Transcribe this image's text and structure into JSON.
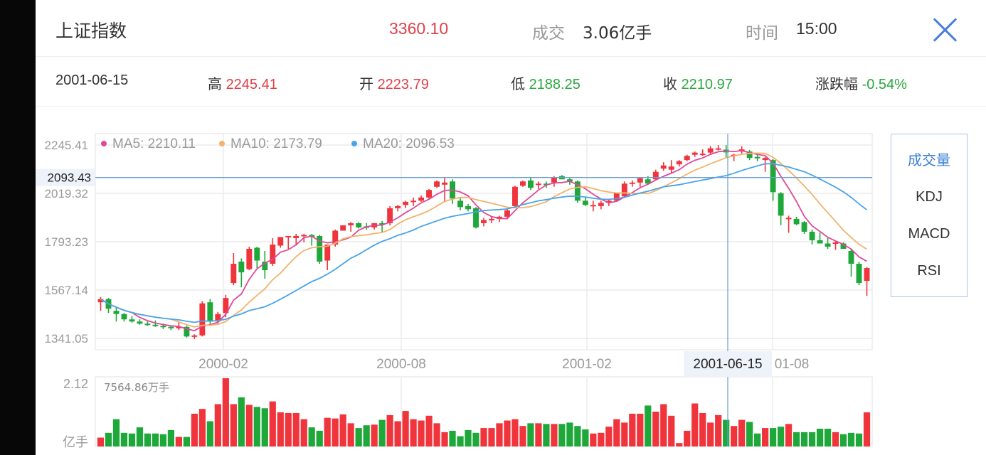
{
  "header": {
    "title": "上证指数",
    "price": "3360.10",
    "volume_label": "成交",
    "volume_value": "3.06亿手",
    "time_label": "时间",
    "time_value": "15:00",
    "close_icon": "close-icon"
  },
  "detail": {
    "date": "2001-06-15",
    "high_label": "高",
    "high_value": "2245.41",
    "open_label": "开",
    "open_value": "2223.79",
    "low_label": "低",
    "low_value": "2188.25",
    "close_label": "收",
    "close_value": "2210.97",
    "change_label": "涨跌幅",
    "change_value": "-0.54%"
  },
  "legend": {
    "ma5": "MA5: 2210.11",
    "ma10": "MA10: 2173.79",
    "ma20": "MA20: 2096.53"
  },
  "colors": {
    "up": "#f0343c",
    "down": "#1fa83a",
    "ma5": "#e0489a",
    "ma10": "#f2b36a",
    "ma20": "#48a4ea",
    "crosshair": "#6a9fd4",
    "accent": "#3b7fd6"
  },
  "indicators": [
    {
      "label": "成交量",
      "active": true
    },
    {
      "label": "KDJ",
      "active": false
    },
    {
      "label": "MACD",
      "active": false
    },
    {
      "label": "RSI",
      "active": false
    }
  ],
  "chart_data": {
    "type": "candlestick",
    "title": "上证指数",
    "y_ticks": [
      "2245.41",
      "2019.32",
      "1793.23",
      "1567.14",
      "1341.05"
    ],
    "y_range": [
      1341.05,
      2245.41
    ],
    "crosshair_price": "2093.43",
    "crosshair_date": "2001-06-15",
    "x_ticks": [
      "2000-02",
      "2000-08",
      "2001-02",
      "2001-08"
    ],
    "x_ticks_display": [
      "2000-02",
      "2000-08",
      "2001-02",
      "01-08"
    ],
    "volume_max_label": "2.12",
    "volume_unit": "亿手",
    "volume_value_label": "7564.86万手",
    "candles": [
      [
        1510,
        1535,
        1470,
        1525
      ],
      [
        1525,
        1530,
        1460,
        1480
      ],
      [
        1470,
        1490,
        1420,
        1455
      ],
      [
        1455,
        1460,
        1420,
        1430
      ],
      [
        1430,
        1445,
        1415,
        1420
      ],
      [
        1420,
        1430,
        1405,
        1410
      ],
      [
        1410,
        1420,
        1400,
        1405
      ],
      [
        1405,
        1425,
        1395,
        1400
      ],
      [
        1400,
        1410,
        1385,
        1395
      ],
      [
        1395,
        1400,
        1380,
        1390
      ],
      [
        1390,
        1420,
        1380,
        1395
      ],
      [
        1395,
        1400,
        1345,
        1350
      ],
      [
        1350,
        1360,
        1338,
        1355
      ],
      [
        1355,
        1515,
        1350,
        1505
      ],
      [
        1510,
        1525,
        1400,
        1420
      ],
      [
        1420,
        1465,
        1410,
        1455
      ],
      [
        1460,
        1545,
        1440,
        1530
      ],
      [
        1600,
        1740,
        1590,
        1690
      ],
      [
        1700,
        1715,
        1580,
        1650
      ],
      [
        1665,
        1770,
        1660,
        1760
      ],
      [
        1765,
        1770,
        1670,
        1705
      ],
      [
        1700,
        1750,
        1620,
        1660
      ],
      [
        1690,
        1810,
        1680,
        1780
      ],
      [
        1775,
        1815,
        1765,
        1815
      ],
      [
        1815,
        1820,
        1760,
        1820
      ],
      [
        1810,
        1830,
        1775,
        1820
      ],
      [
        1825,
        1830,
        1790,
        1825
      ],
      [
        1825,
        1830,
        1775,
        1815
      ],
      [
        1820,
        1825,
        1690,
        1700
      ],
      [
        1705,
        1780,
        1660,
        1780
      ],
      [
        1780,
        1850,
        1770,
        1845
      ],
      [
        1845,
        1870,
        1845,
        1870
      ],
      [
        1870,
        1885,
        1840,
        1880
      ],
      [
        1880,
        1885,
        1855,
        1860
      ],
      [
        1865,
        1880,
        1850,
        1860
      ],
      [
        1860,
        1880,
        1850,
        1880
      ],
      [
        1880,
        1890,
        1835,
        1875
      ],
      [
        1880,
        1960,
        1870,
        1950
      ],
      [
        1950,
        1965,
        1935,
        1960
      ],
      [
        1965,
        1985,
        1950,
        1980
      ],
      [
        1980,
        2000,
        1960,
        1985
      ],
      [
        1985,
        2010,
        1980,
        2000
      ],
      [
        2000,
        2040,
        1990,
        2035
      ],
      [
        2050,
        2080,
        2045,
        2075
      ],
      [
        2060,
        2095,
        1980,
        2070
      ],
      [
        2075,
        2085,
        1970,
        1995
      ],
      [
        1985,
        2000,
        1940,
        1955
      ],
      [
        1960,
        1970,
        1935,
        1945
      ],
      [
        1950,
        1955,
        1855,
        1860
      ],
      [
        1880,
        1905,
        1865,
        1895
      ],
      [
        1895,
        1910,
        1880,
        1900
      ],
      [
        1900,
        1915,
        1885,
        1910
      ],
      [
        1910,
        1950,
        1900,
        1940
      ],
      [
        1960,
        2055,
        1955,
        2050
      ],
      [
        2055,
        2080,
        2050,
        2075
      ],
      [
        2080,
        2095,
        2035,
        2045
      ],
      [
        2060,
        2075,
        2040,
        2065
      ],
      [
        2065,
        2075,
        2045,
        2060
      ],
      [
        2070,
        2100,
        2050,
        2095
      ],
      [
        2100,
        2105,
        2085,
        2085
      ],
      [
        2085,
        2090,
        2060,
        2075
      ],
      [
        2075,
        2080,
        1975,
        1985
      ],
      [
        1985,
        2000,
        1960,
        1965
      ],
      [
        1960,
        1985,
        1935,
        1965
      ],
      [
        1960,
        1985,
        1945,
        1975
      ],
      [
        1975,
        1990,
        1960,
        1985
      ],
      [
        1985,
        2020,
        1980,
        2020
      ],
      [
        2005,
        2075,
        2000,
        2065
      ],
      [
        2065,
        2080,
        2050,
        2070
      ],
      [
        2070,
        2095,
        2045,
        2090
      ],
      [
        2085,
        2100,
        2060,
        2065
      ],
      [
        2085,
        2130,
        2080,
        2120
      ],
      [
        2135,
        2165,
        2125,
        2150
      ],
      [
        2130,
        2175,
        2115,
        2145
      ],
      [
        2155,
        2175,
        2145,
        2170
      ],
      [
        2175,
        2200,
        2170,
        2195
      ],
      [
        2200,
        2215,
        2190,
        2210
      ],
      [
        2205,
        2225,
        2195,
        2205
      ],
      [
        2210,
        2240,
        2200,
        2230
      ],
      [
        2225,
        2245,
        2220,
        2230
      ],
      [
        2224,
        2245,
        2188,
        2211
      ],
      [
        2200,
        2205,
        2170,
        2200
      ],
      [
        2215,
        2240,
        2205,
        2225
      ],
      [
        2215,
        2222,
        2175,
        2185
      ],
      [
        2190,
        2200,
        2170,
        2185
      ],
      [
        2175,
        2190,
        2120,
        2185
      ],
      [
        2175,
        2180,
        1985,
        2025
      ],
      [
        2020,
        2025,
        1870,
        1915
      ],
      [
        1905,
        1915,
        1835,
        1905
      ],
      [
        1900,
        1910,
        1870,
        1875
      ],
      [
        1885,
        1890,
        1830,
        1840
      ],
      [
        1840,
        1850,
        1780,
        1800
      ],
      [
        1800,
        1835,
        1790,
        1785
      ],
      [
        1785,
        1810,
        1760,
        1770
      ],
      [
        1790,
        1795,
        1755,
        1790
      ],
      [
        1785,
        1790,
        1765,
        1760
      ],
      [
        1750,
        1760,
        1630,
        1690
      ],
      [
        1690,
        1700,
        1590,
        1600
      ],
      [
        1610,
        1675,
        1540,
        1670
      ]
    ],
    "volumes_frac": [
      0.13,
      0.2,
      0.4,
      0.2,
      0.19,
      0.28,
      0.19,
      0.19,
      0.18,
      0.24,
      0.14,
      0.14,
      0.48,
      0.55,
      0.37,
      0.62,
      1.0,
      0.62,
      0.72,
      0.61,
      0.58,
      0.56,
      0.66,
      0.5,
      0.49,
      0.49,
      0.4,
      0.28,
      0.23,
      0.42,
      0.41,
      0.47,
      0.34,
      0.27,
      0.31,
      0.32,
      0.39,
      0.46,
      0.37,
      0.52,
      0.4,
      0.38,
      0.45,
      0.34,
      0.21,
      0.23,
      0.15,
      0.24,
      0.2,
      0.27,
      0.27,
      0.34,
      0.38,
      0.4,
      0.3,
      0.34,
      0.34,
      0.33,
      0.33,
      0.33,
      0.35,
      0.3,
      0.25,
      0.19,
      0.2,
      0.29,
      0.4,
      0.35,
      0.48,
      0.48,
      0.6,
      0.51,
      0.62,
      0.45,
      0.05,
      0.23,
      0.63,
      0.49,
      0.35,
      0.46,
      0.39,
      0.3,
      0.39,
      0.36,
      0.19,
      0.27,
      0.27,
      0.29,
      0.33,
      0.21,
      0.21,
      0.21,
      0.26,
      0.26,
      0.21,
      0.18,
      0.2,
      0.19,
      0.5
    ]
  }
}
